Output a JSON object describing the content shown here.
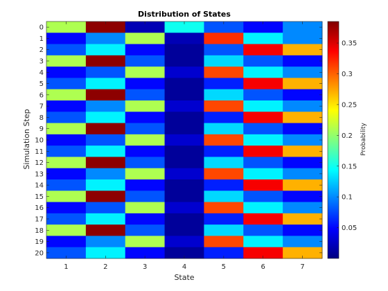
{
  "chart_data": {
    "type": "heatmap",
    "title": "Distribution of States",
    "xlabel": "State",
    "ylabel": "Simulation Step",
    "colorbar_label": "Probability",
    "colormap": "jet",
    "x": [
      "1",
      "2",
      "3",
      "4",
      "5",
      "6",
      "7"
    ],
    "y": [
      "0",
      "1",
      "2",
      "3",
      "4",
      "5",
      "6",
      "7",
      "8",
      "9",
      "10",
      "11",
      "12",
      "13",
      "14",
      "15",
      "16",
      "17",
      "18",
      "19",
      "20"
    ],
    "clim": [
      0,
      0.385
    ],
    "colorbar_ticks": [
      "0.05",
      "0.1",
      "0.15",
      "0.2",
      "0.25",
      "0.3",
      "0.35"
    ],
    "colorbar_tick_values": [
      0.05,
      0.1,
      0.15,
      0.2,
      0.25,
      0.3,
      0.35
    ],
    "values": [
      [
        0.21,
        0.38,
        0.02,
        0.15,
        0.08,
        0.05,
        0.1
      ],
      [
        0.05,
        0.1,
        0.21,
        0.02,
        0.32,
        0.14,
        0.1
      ],
      [
        0.08,
        0.14,
        0.05,
        0.01,
        0.08,
        0.34,
        0.27
      ],
      [
        0.21,
        0.38,
        0.08,
        0.01,
        0.13,
        0.08,
        0.05
      ],
      [
        0.05,
        0.08,
        0.21,
        0.03,
        0.31,
        0.14,
        0.1
      ],
      [
        0.08,
        0.14,
        0.05,
        0.01,
        0.06,
        0.34,
        0.27
      ],
      [
        0.21,
        0.38,
        0.08,
        0.01,
        0.13,
        0.08,
        0.05
      ],
      [
        0.05,
        0.1,
        0.21,
        0.03,
        0.31,
        0.14,
        0.1
      ],
      [
        0.08,
        0.14,
        0.05,
        0.01,
        0.06,
        0.34,
        0.27
      ],
      [
        0.21,
        0.38,
        0.08,
        0.01,
        0.13,
        0.08,
        0.05
      ],
      [
        0.05,
        0.08,
        0.21,
        0.03,
        0.31,
        0.14,
        0.1
      ],
      [
        0.08,
        0.14,
        0.05,
        0.01,
        0.06,
        0.34,
        0.27
      ],
      [
        0.21,
        0.38,
        0.08,
        0.01,
        0.13,
        0.08,
        0.05
      ],
      [
        0.05,
        0.1,
        0.21,
        0.03,
        0.31,
        0.14,
        0.1
      ],
      [
        0.08,
        0.14,
        0.05,
        0.01,
        0.06,
        0.34,
        0.27
      ],
      [
        0.21,
        0.38,
        0.08,
        0.01,
        0.13,
        0.08,
        0.05
      ],
      [
        0.05,
        0.08,
        0.21,
        0.03,
        0.31,
        0.14,
        0.1
      ],
      [
        0.08,
        0.14,
        0.05,
        0.01,
        0.06,
        0.34,
        0.27
      ],
      [
        0.21,
        0.38,
        0.08,
        0.01,
        0.13,
        0.08,
        0.05
      ],
      [
        0.05,
        0.1,
        0.21,
        0.03,
        0.31,
        0.14,
        0.1
      ],
      [
        0.08,
        0.14,
        0.05,
        0.01,
        0.06,
        0.34,
        0.27
      ]
    ]
  }
}
